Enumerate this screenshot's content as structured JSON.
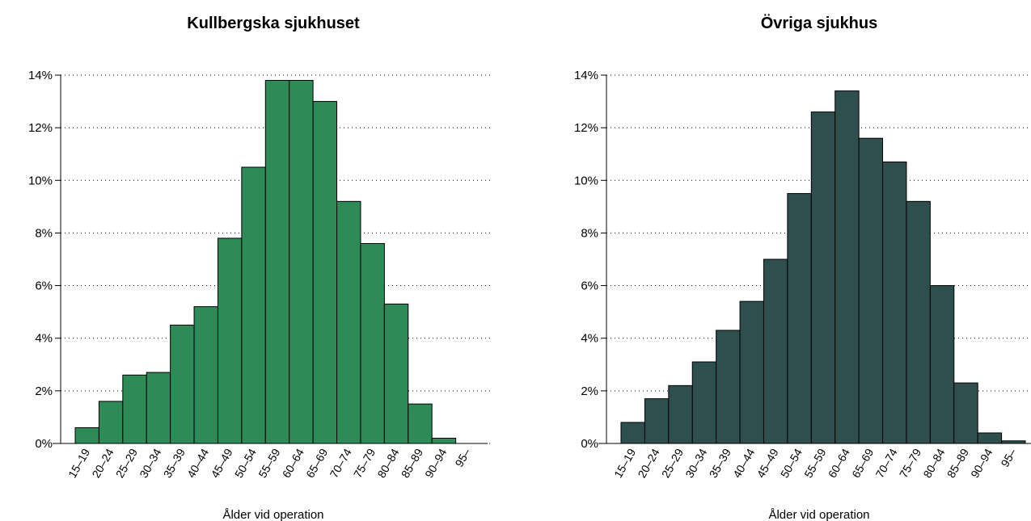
{
  "chart_data": [
    {
      "type": "bar",
      "title": "Kullbergska sjukhuset",
      "xlabel": "Ålder vid operation",
      "categories": [
        "15–19",
        "20–24",
        "25–29",
        "30–34",
        "35–39",
        "40–44",
        "45–49",
        "50–54",
        "55–59",
        "60–64",
        "65–69",
        "70–74",
        "75–79",
        "80–84",
        "85–89",
        "90–94",
        "95–"
      ],
      "values": [
        0.6,
        1.6,
        2.6,
        2.7,
        4.5,
        5.2,
        7.8,
        10.5,
        13.8,
        13.8,
        13.0,
        9.2,
        7.6,
        5.3,
        1.5,
        0.2,
        0
      ],
      "color": "#2e8b57",
      "ylim": [
        0,
        14
      ],
      "yticks": [
        {
          "value": 0,
          "label": "0%"
        },
        {
          "value": 2,
          "label": "2%"
        },
        {
          "value": 4,
          "label": "4%"
        },
        {
          "value": 6,
          "label": "6%"
        },
        {
          "value": 8,
          "label": "8%"
        },
        {
          "value": 10,
          "label": "10%"
        },
        {
          "value": 12,
          "label": "12%"
        },
        {
          "value": 14,
          "label": "14%"
        }
      ],
      "grid": true
    },
    {
      "type": "bar",
      "title": "Övriga sjukhus",
      "xlabel": "Ålder vid operation",
      "categories": [
        "15–19",
        "20–24",
        "25–29",
        "30–34",
        "35–39",
        "40–44",
        "45–49",
        "50–54",
        "55–59",
        "60–64",
        "65–69",
        "70–74",
        "75–79",
        "80–84",
        "85–89",
        "90–94",
        "95–"
      ],
      "values": [
        0.8,
        1.7,
        2.2,
        3.1,
        4.3,
        5.4,
        7.0,
        9.5,
        12.6,
        13.4,
        11.6,
        10.7,
        9.2,
        6.0,
        2.3,
        0.4,
        0.1
      ],
      "color": "#2f4f4f",
      "ylim": [
        0,
        14
      ],
      "yticks": [
        {
          "value": 0,
          "label": "0%"
        },
        {
          "value": 2,
          "label": "2%"
        },
        {
          "value": 4,
          "label": "4%"
        },
        {
          "value": 6,
          "label": "6%"
        },
        {
          "value": 8,
          "label": "8%"
        },
        {
          "value": 10,
          "label": "10%"
        },
        {
          "value": 12,
          "label": "12%"
        },
        {
          "value": 14,
          "label": "14%"
        }
      ],
      "grid": true
    }
  ]
}
